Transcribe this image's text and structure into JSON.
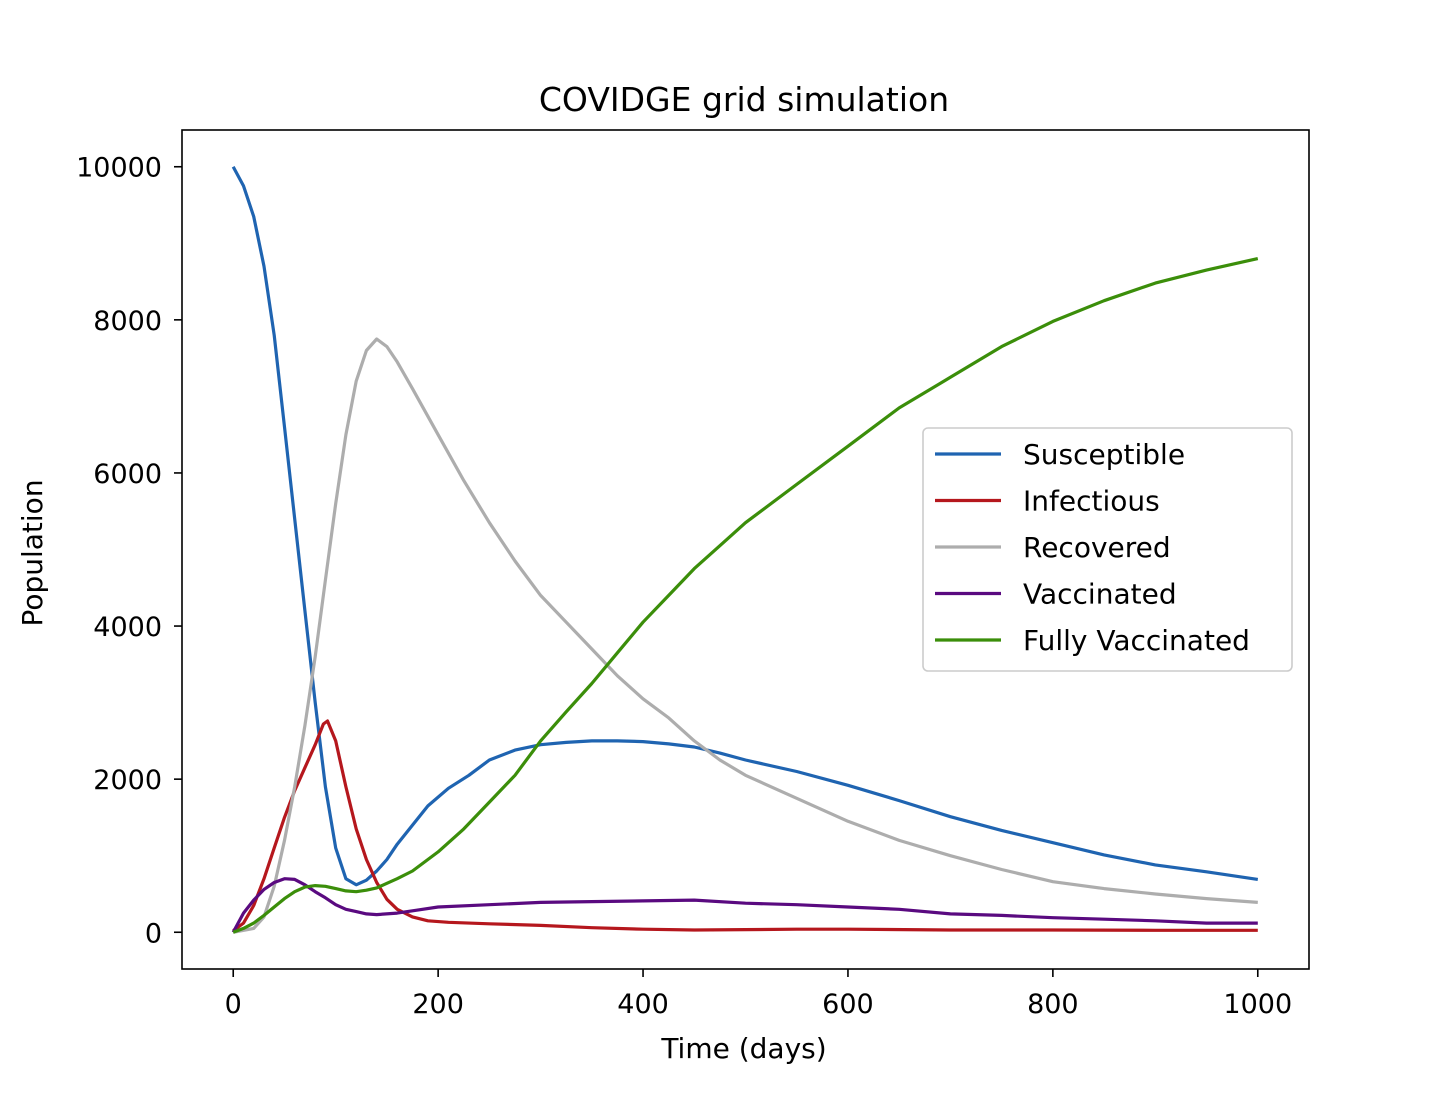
{
  "chart_data": {
    "type": "line",
    "title": "COVIDGE grid simulation",
    "xlabel": "Time (days)",
    "ylabel": "Population",
    "xlim": [
      -50,
      1050
    ],
    "ylim": [
      -480,
      10480
    ],
    "xticks": [
      0,
      200,
      400,
      600,
      800,
      1000
    ],
    "yticks": [
      0,
      2000,
      4000,
      6000,
      8000,
      10000
    ],
    "xtick_labels": [
      "0",
      "200",
      "400",
      "600",
      "800",
      "1000"
    ],
    "ytick_labels": [
      "0",
      "2000",
      "4000",
      "6000",
      "8000",
      "10000"
    ],
    "grid": false,
    "legend_position": "center-right",
    "series": [
      {
        "name": "Susceptible",
        "color": "#1f64b1",
        "points": [
          [
            0,
            10000
          ],
          [
            10,
            9750
          ],
          [
            20,
            9350
          ],
          [
            30,
            8700
          ],
          [
            40,
            7800
          ],
          [
            50,
            6600
          ],
          [
            60,
            5400
          ],
          [
            70,
            4200
          ],
          [
            80,
            3000
          ],
          [
            90,
            1900
          ],
          [
            100,
            1100
          ],
          [
            110,
            700
          ],
          [
            120,
            620
          ],
          [
            130,
            680
          ],
          [
            140,
            800
          ],
          [
            150,
            950
          ],
          [
            160,
            1150
          ],
          [
            175,
            1400
          ],
          [
            190,
            1650
          ],
          [
            210,
            1880
          ],
          [
            230,
            2050
          ],
          [
            250,
            2250
          ],
          [
            275,
            2380
          ],
          [
            300,
            2450
          ],
          [
            325,
            2480
          ],
          [
            350,
            2500
          ],
          [
            375,
            2500
          ],
          [
            400,
            2490
          ],
          [
            425,
            2460
          ],
          [
            450,
            2420
          ],
          [
            475,
            2340
          ],
          [
            500,
            2250
          ],
          [
            550,
            2100
          ],
          [
            600,
            1920
          ],
          [
            650,
            1720
          ],
          [
            700,
            1510
          ],
          [
            750,
            1330
          ],
          [
            800,
            1170
          ],
          [
            850,
            1010
          ],
          [
            900,
            880
          ],
          [
            950,
            790
          ],
          [
            1000,
            690
          ]
        ]
      },
      {
        "name": "Infectious",
        "color": "#b5171d",
        "points": [
          [
            0,
            20
          ],
          [
            10,
            120
          ],
          [
            20,
            350
          ],
          [
            30,
            700
          ],
          [
            40,
            1100
          ],
          [
            50,
            1500
          ],
          [
            60,
            1850
          ],
          [
            70,
            2150
          ],
          [
            80,
            2450
          ],
          [
            88,
            2720
          ],
          [
            92,
            2760
          ],
          [
            100,
            2500
          ],
          [
            110,
            1900
          ],
          [
            120,
            1350
          ],
          [
            130,
            950
          ],
          [
            140,
            650
          ],
          [
            150,
            430
          ],
          [
            160,
            300
          ],
          [
            175,
            200
          ],
          [
            190,
            150
          ],
          [
            210,
            130
          ],
          [
            250,
            110
          ],
          [
            300,
            90
          ],
          [
            350,
            60
          ],
          [
            400,
            40
          ],
          [
            450,
            30
          ],
          [
            500,
            35
          ],
          [
            550,
            40
          ],
          [
            600,
            40
          ],
          [
            700,
            30
          ],
          [
            800,
            30
          ],
          [
            900,
            25
          ],
          [
            1000,
            25
          ]
        ]
      },
      {
        "name": "Recovered",
        "color": "#adadad",
        "points": [
          [
            0,
            0
          ],
          [
            20,
            50
          ],
          [
            30,
            200
          ],
          [
            40,
            600
          ],
          [
            50,
            1200
          ],
          [
            60,
            1900
          ],
          [
            70,
            2700
          ],
          [
            80,
            3600
          ],
          [
            90,
            4600
          ],
          [
            100,
            5600
          ],
          [
            110,
            6500
          ],
          [
            120,
            7200
          ],
          [
            130,
            7600
          ],
          [
            140,
            7750
          ],
          [
            150,
            7650
          ],
          [
            160,
            7450
          ],
          [
            175,
            7100
          ],
          [
            200,
            6500
          ],
          [
            225,
            5900
          ],
          [
            250,
            5350
          ],
          [
            275,
            4850
          ],
          [
            300,
            4400
          ],
          [
            325,
            4050
          ],
          [
            350,
            3700
          ],
          [
            375,
            3350
          ],
          [
            400,
            3050
          ],
          [
            425,
            2800
          ],
          [
            450,
            2500
          ],
          [
            475,
            2250
          ],
          [
            500,
            2050
          ],
          [
            550,
            1750
          ],
          [
            600,
            1450
          ],
          [
            650,
            1200
          ],
          [
            700,
            1000
          ],
          [
            750,
            820
          ],
          [
            800,
            660
          ],
          [
            850,
            570
          ],
          [
            900,
            500
          ],
          [
            950,
            440
          ],
          [
            1000,
            390
          ]
        ]
      },
      {
        "name": "Vaccinated",
        "color": "#5a0a80",
        "points": [
          [
            0,
            0
          ],
          [
            10,
            250
          ],
          [
            20,
            420
          ],
          [
            30,
            560
          ],
          [
            40,
            650
          ],
          [
            50,
            700
          ],
          [
            60,
            690
          ],
          [
            70,
            620
          ],
          [
            80,
            530
          ],
          [
            90,
            450
          ],
          [
            100,
            360
          ],
          [
            110,
            300
          ],
          [
            120,
            270
          ],
          [
            130,
            240
          ],
          [
            140,
            230
          ],
          [
            160,
            250
          ],
          [
            180,
            290
          ],
          [
            200,
            330
          ],
          [
            250,
            360
          ],
          [
            300,
            390
          ],
          [
            350,
            400
          ],
          [
            400,
            410
          ],
          [
            450,
            420
          ],
          [
            500,
            380
          ],
          [
            550,
            360
          ],
          [
            600,
            330
          ],
          [
            650,
            300
          ],
          [
            700,
            240
          ],
          [
            750,
            220
          ],
          [
            800,
            190
          ],
          [
            850,
            170
          ],
          [
            900,
            150
          ],
          [
            950,
            120
          ],
          [
            1000,
            120
          ]
        ]
      },
      {
        "name": "Fully Vaccinated",
        "color": "#3b8e0a",
        "points": [
          [
            0,
            0
          ],
          [
            10,
            50
          ],
          [
            20,
            120
          ],
          [
            30,
            220
          ],
          [
            40,
            330
          ],
          [
            50,
            440
          ],
          [
            60,
            530
          ],
          [
            70,
            590
          ],
          [
            80,
            610
          ],
          [
            90,
            600
          ],
          [
            100,
            570
          ],
          [
            110,
            540
          ],
          [
            120,
            530
          ],
          [
            130,
            550
          ],
          [
            140,
            580
          ],
          [
            150,
            640
          ],
          [
            160,
            700
          ],
          [
            175,
            800
          ],
          [
            200,
            1050
          ],
          [
            225,
            1350
          ],
          [
            250,
            1700
          ],
          [
            275,
            2050
          ],
          [
            300,
            2500
          ],
          [
            325,
            2880
          ],
          [
            350,
            3250
          ],
          [
            375,
            3650
          ],
          [
            400,
            4050
          ],
          [
            425,
            4400
          ],
          [
            450,
            4750
          ],
          [
            475,
            5050
          ],
          [
            500,
            5350
          ],
          [
            550,
            5850
          ],
          [
            600,
            6350
          ],
          [
            650,
            6850
          ],
          [
            700,
            7250
          ],
          [
            750,
            7650
          ],
          [
            800,
            7980
          ],
          [
            850,
            8250
          ],
          [
            900,
            8480
          ],
          [
            950,
            8650
          ],
          [
            1000,
            8800
          ]
        ]
      }
    ]
  }
}
